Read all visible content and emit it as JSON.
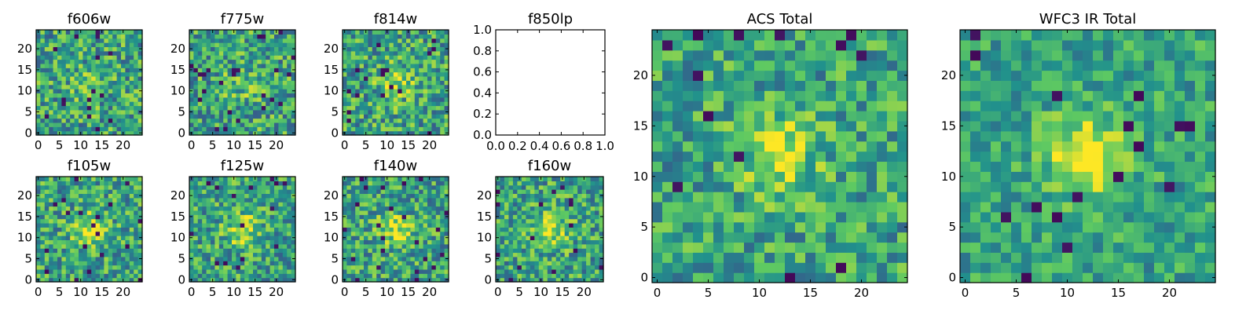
{
  "colormap": [
    "#440154",
    "#3b528b",
    "#21918c",
    "#5ec962",
    "#fde725"
  ],
  "chart_data": [
    {
      "type": "heatmap",
      "title": "f606w",
      "grid_size": 25,
      "xticks": [
        0,
        5,
        10,
        15,
        20
      ],
      "yticks": [
        0,
        5,
        10,
        15,
        20
      ],
      "peak": 0.15,
      "noise": 0.3,
      "dark_fraction": 0.03,
      "seed": 11
    },
    {
      "type": "heatmap",
      "title": "f775w",
      "grid_size": 25,
      "xticks": [
        0,
        5,
        10,
        15,
        20
      ],
      "yticks": [
        0,
        5,
        10,
        15,
        20
      ],
      "peak": 0.15,
      "noise": 0.3,
      "dark_fraction": 0.03,
      "seed": 23
    },
    {
      "type": "heatmap",
      "title": "f814w",
      "grid_size": 25,
      "xticks": [
        0,
        5,
        10,
        15,
        20
      ],
      "yticks": [
        0,
        5,
        10,
        15,
        20
      ],
      "peak": 0.25,
      "noise": 0.3,
      "dark_fraction": 0.03,
      "seed": 37
    },
    {
      "type": "empty",
      "title": "f850lp",
      "xticks": [
        "0.0",
        "0.2",
        "0.4",
        "0.6",
        "0.8",
        "1.0"
      ],
      "yticks": [
        "0.0",
        "0.2",
        "0.4",
        "0.6",
        "0.8",
        "1.0"
      ],
      "xlim": [
        0,
        1
      ],
      "ylim": [
        0,
        1
      ]
    },
    {
      "type": "heatmap",
      "title": "f105w",
      "grid_size": 25,
      "xticks": [
        0,
        5,
        10,
        15,
        20
      ],
      "yticks": [
        0,
        5,
        10,
        15,
        20
      ],
      "peak": 0.3,
      "noise": 0.28,
      "dark_fraction": 0.03,
      "seed": 41
    },
    {
      "type": "heatmap",
      "title": "f125w",
      "grid_size": 25,
      "xticks": [
        0,
        5,
        10,
        15,
        20
      ],
      "yticks": [
        0,
        5,
        10,
        15,
        20
      ],
      "peak": 0.3,
      "noise": 0.28,
      "dark_fraction": 0.03,
      "seed": 53
    },
    {
      "type": "heatmap",
      "title": "f140w",
      "grid_size": 25,
      "xticks": [
        0,
        5,
        10,
        15,
        20
      ],
      "yticks": [
        0,
        5,
        10,
        15,
        20
      ],
      "peak": 0.3,
      "noise": 0.28,
      "dark_fraction": 0.03,
      "seed": 67
    },
    {
      "type": "heatmap",
      "title": "f160w",
      "grid_size": 25,
      "xticks": [
        0,
        5,
        10,
        15,
        20
      ],
      "yticks": [
        0,
        5,
        10,
        15,
        20
      ],
      "peak": 0.35,
      "noise": 0.28,
      "dark_fraction": 0.03,
      "seed": 79
    },
    {
      "type": "heatmap",
      "title": "ACS Total",
      "grid_size": 25,
      "xticks": [
        0,
        5,
        10,
        15,
        20
      ],
      "yticks": [
        0,
        5,
        10,
        15,
        20
      ],
      "peak": 0.3,
      "noise": 0.25,
      "dark_fraction": 0.02,
      "seed": 97
    },
    {
      "type": "heatmap",
      "title": "WFC3 IR Total",
      "grid_size": 25,
      "xticks": [
        0,
        5,
        10,
        15,
        20
      ],
      "yticks": [
        0,
        5,
        10,
        15,
        20
      ],
      "peak": 0.45,
      "noise": 0.2,
      "dark_fraction": 0.02,
      "seed": 101
    }
  ]
}
